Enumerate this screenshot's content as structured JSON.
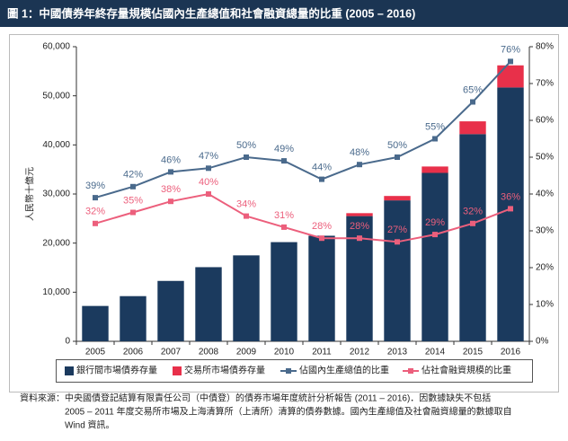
{
  "chart_data": {
    "type": "bar",
    "title": "圖 1：中國債券年終存量規模佔國內生產總值和社會融資總量的比重 (2005 – 2016)",
    "ylabel": "人民幣十億元",
    "categories": [
      "2005",
      "2006",
      "2007",
      "2008",
      "2009",
      "2010",
      "2011",
      "2012",
      "2013",
      "2014",
      "2015",
      "2016"
    ],
    "ylim": [
      0,
      60000
    ],
    "yticks": [
      0,
      {
        "value": 10000,
        "label": "10,000"
      },
      {
        "value": 20000,
        "label": "20,000"
      },
      {
        "value": 30000,
        "label": "30,000"
      },
      {
        "value": 40000,
        "label": "40,000"
      },
      {
        "value": 50000,
        "label": "50,000"
      },
      {
        "value": 60000,
        "label": "60,000"
      }
    ],
    "y2lim": [
      0,
      80
    ],
    "y2ticks": [
      {
        "value": 0,
        "label": "0%"
      },
      {
        "value": 10,
        "label": "10%"
      },
      {
        "value": 20,
        "label": "20%"
      },
      {
        "value": 30,
        "label": "30%"
      },
      {
        "value": 40,
        "label": "40%"
      },
      {
        "value": 50,
        "label": "50%"
      },
      {
        "value": 60,
        "label": "60%"
      },
      {
        "value": 70,
        "label": "70%"
      },
      {
        "value": 80,
        "label": "80%"
      }
    ],
    "series": [
      {
        "name": "銀行間市場債券存量",
        "color": "#1b3a5e",
        "kind": "bar",
        "values": [
          7200,
          9200,
          12300,
          15100,
          17500,
          20200,
          21500,
          25500,
          28700,
          34300,
          42200,
          51700
        ]
      },
      {
        "name": "交易所市場債券存量",
        "color": "#e8304a",
        "kind": "bar",
        "values": [
          null,
          null,
          null,
          null,
          null,
          null,
          null,
          600,
          900,
          1300,
          2600,
          4500
        ]
      },
      {
        "name": "佔國內生產總值的比重",
        "color": "#4a6a8c",
        "kind": "line",
        "axis": "y2",
        "values": [
          39,
          42,
          46,
          47,
          50,
          49,
          44,
          48,
          50,
          55,
          65,
          76
        ],
        "value_labels": [
          "39%",
          "42%",
          "46%",
          "47%",
          "50%",
          "49%",
          "44%",
          "48%",
          "50%",
          "55%",
          "65%",
          "76%"
        ]
      },
      {
        "name": "佔社會融資規模的比重",
        "color": "#ec5f7c",
        "kind": "line",
        "axis": "y2",
        "values": [
          32,
          35,
          38,
          40,
          34,
          31,
          28,
          28,
          27,
          29,
          32,
          36
        ],
        "value_labels": [
          "32%",
          "35%",
          "38%",
          "40%",
          "34%",
          "31%",
          "28%",
          "28%",
          "27%",
          "29%",
          "32%",
          "36%"
        ]
      }
    ],
    "source": [
      "資料來源：中央國債登記結算有限責任公司（中債登）的債券市場年度統計分析報告 (2011 – 2016)．因數據缺失不包括",
      "2005 – 2011 年度交易所市場及上海清算所（上清所）清算的債券數據。國內生產總值及社會融資總量的數據取自",
      "Wind 資訊。"
    ]
  }
}
